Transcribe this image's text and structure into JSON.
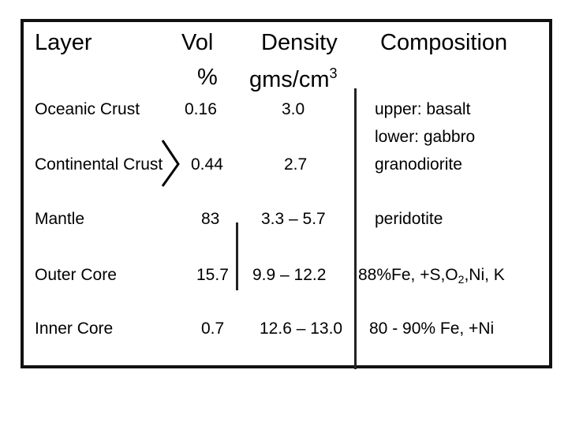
{
  "headers": {
    "layer": "Layer",
    "vol_line1": "Vol",
    "vol_line2": "%",
    "density_line1": "Density",
    "density_line2_base": "gms/cm",
    "density_line2_sup": "3",
    "composition": "Composition"
  },
  "rows": [
    {
      "layer": "Oceanic Crust",
      "vol": "0.16",
      "density": "3.0",
      "composition": [
        "upper: basalt",
        "lower: gabbro"
      ]
    },
    {
      "layer": "Continental Crust",
      "vol": "0.44",
      "density": "2.7",
      "composition": [
        "granodiorite"
      ]
    },
    {
      "layer": "Mantle",
      "vol": "83",
      "density": "3.3 – 5.7",
      "composition": [
        "peridotite"
      ]
    },
    {
      "layer": "Outer Core",
      "vol": "15.7",
      "density": "9.9 – 12.2",
      "composition_parts": [
        "88%Fe, +S,O",
        "2",
        ",Ni, K"
      ]
    },
    {
      "layer": "Inner Core",
      "vol": "0.7",
      "density": "12.6 – 13.0",
      "composition": [
        "80 - 90% Fe, +Ni"
      ]
    }
  ]
}
